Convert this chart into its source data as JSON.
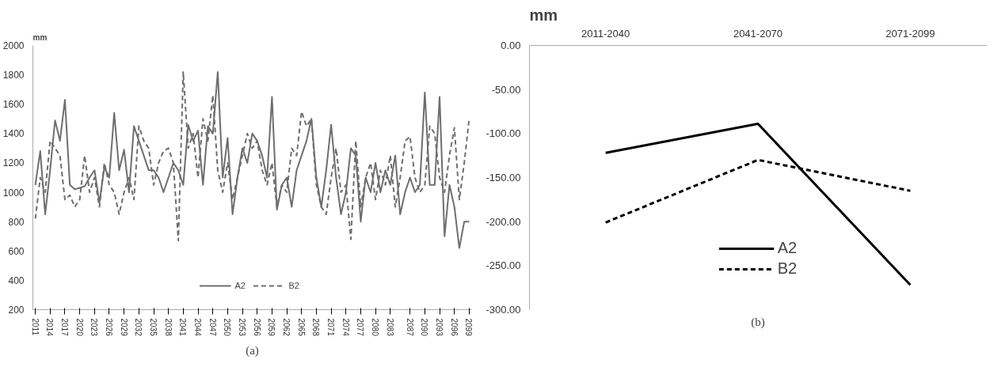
{
  "chart_data": [
    {
      "type": "line",
      "ylabel": "mm",
      "annotations": [
        "(a)"
      ],
      "legend": "bottom",
      "xlim": [
        2010.5,
        2099.5
      ],
      "ylim": [
        200,
        2000
      ],
      "xticks": [
        2011,
        2014,
        2017,
        2020,
        2023,
        2026,
        2029,
        2032,
        2035,
        2038,
        2041,
        2044,
        2047,
        2050,
        2053,
        2056,
        2059,
        2062,
        2065,
        2068,
        2071,
        2074,
        2077,
        2080,
        2083,
        2087,
        2090,
        2093,
        2096,
        2099
      ],
      "yticks": [
        200,
        400,
        600,
        800,
        1000,
        1200,
        1400,
        1600,
        1800,
        2000
      ],
      "x": [
        2011,
        2012,
        2013,
        2014,
        2015,
        2016,
        2017,
        2018,
        2019,
        2020,
        2021,
        2022,
        2023,
        2024,
        2025,
        2026,
        2027,
        2028,
        2029,
        2030,
        2031,
        2032,
        2033,
        2034,
        2035,
        2036,
        2037,
        2038,
        2039,
        2040,
        2041,
        2042,
        2043,
        2044,
        2045,
        2046,
        2047,
        2048,
        2049,
        2050,
        2051,
        2052,
        2053,
        2054,
        2055,
        2056,
        2057,
        2058,
        2059,
        2060,
        2061,
        2062,
        2063,
        2064,
        2065,
        2066,
        2067,
        2068,
        2069,
        2070,
        2071,
        2072,
        2073,
        2074,
        2075,
        2076,
        2077,
        2078,
        2079,
        2080,
        2081,
        2082,
        2083,
        2084,
        2085,
        2086,
        2087,
        2088,
        2089,
        2090,
        2091,
        2092,
        2093,
        2094,
        2095,
        2096,
        2097,
        2098,
        2099
      ],
      "series": [
        {
          "name": "A2",
          "color": "#6e6e6e",
          "line_style": "solid",
          "values": [
            1050,
            1280,
            850,
            1150,
            1490,
            1350,
            1630,
            1050,
            1020,
            1030,
            1040,
            1100,
            1150,
            930,
            1170,
            1100,
            1540,
            1150,
            1290,
            1000,
            1450,
            1350,
            1250,
            1150,
            1150,
            1100,
            1000,
            1100,
            1200,
            1150,
            1050,
            1460,
            1350,
            1420,
            1050,
            1450,
            1400,
            1820,
            1100,
            1370,
            850,
            1100,
            1300,
            1200,
            1400,
            1350,
            1250,
            1100,
            1650,
            880,
            1050,
            1100,
            900,
            1150,
            1250,
            1350,
            1500,
            1100,
            900,
            1150,
            1460,
            1100,
            850,
            1000,
            1300,
            1250,
            800,
            1100,
            1000,
            1200,
            1000,
            1150,
            1050,
            1250,
            850,
            1000,
            1100,
            1000,
            1050,
            1680,
            1050,
            1050,
            1650,
            700,
            1050,
            900,
            620,
            800,
            800
          ]
        },
        {
          "name": "B2",
          "color": "#6e6e6e",
          "line_style": "dashed",
          "values": [
            820,
            1100,
            1000,
            1350,
            1300,
            1250,
            950,
            980,
            900,
            950,
            1250,
            1000,
            1100,
            900,
            1200,
            1050,
            1000,
            850,
            1000,
            1100,
            950,
            1450,
            1350,
            1300,
            1050,
            1200,
            1280,
            1300,
            1200,
            670,
            1820,
            1300,
            1400,
            1100,
            1500,
            1350,
            1660,
            1150,
            1000,
            1200,
            950,
            1100,
            1250,
            1400,
            1300,
            1350,
            1150,
            1050,
            1200,
            900,
            1050,
            1000,
            1300,
            1250,
            1550,
            1450,
            1500,
            1050,
            900,
            850,
            1100,
            1300,
            1000,
            1050,
            680,
            1350,
            900,
            1100,
            1200,
            950,
            1150,
            1050,
            1250,
            900,
            1100,
            1350,
            1380,
            1100,
            1000,
            1050,
            1450,
            1400,
            1100,
            1000,
            1250,
            1440,
            950,
            1200,
            1500
          ]
        }
      ]
    },
    {
      "type": "line",
      "ylabel": "mm",
      "annotations": [
        "(b)"
      ],
      "legend": "bottom",
      "categories": [
        "2011-2040",
        "2041-2070",
        "2071-2099"
      ],
      "ylim": [
        -300,
        0
      ],
      "yticks": [
        {
          "value": 0,
          "label": "0.00"
        },
        {
          "value": -50,
          "label": "-50.00"
        },
        {
          "value": -100,
          "label": "-100.00"
        },
        {
          "value": -150,
          "label": "-150.00"
        },
        {
          "value": -200,
          "label": "-200.00"
        },
        {
          "value": -250,
          "label": "-250.00"
        },
        {
          "value": -300,
          "label": "-300.00"
        }
      ],
      "series": [
        {
          "name": "A2",
          "color": "#000000",
          "line_style": "solid",
          "values": [
            -122,
            -89,
            -272
          ]
        },
        {
          "name": "B2",
          "color": "#000000",
          "line_style": "dashed",
          "values": [
            -201,
            -130,
            -165
          ]
        }
      ]
    }
  ]
}
